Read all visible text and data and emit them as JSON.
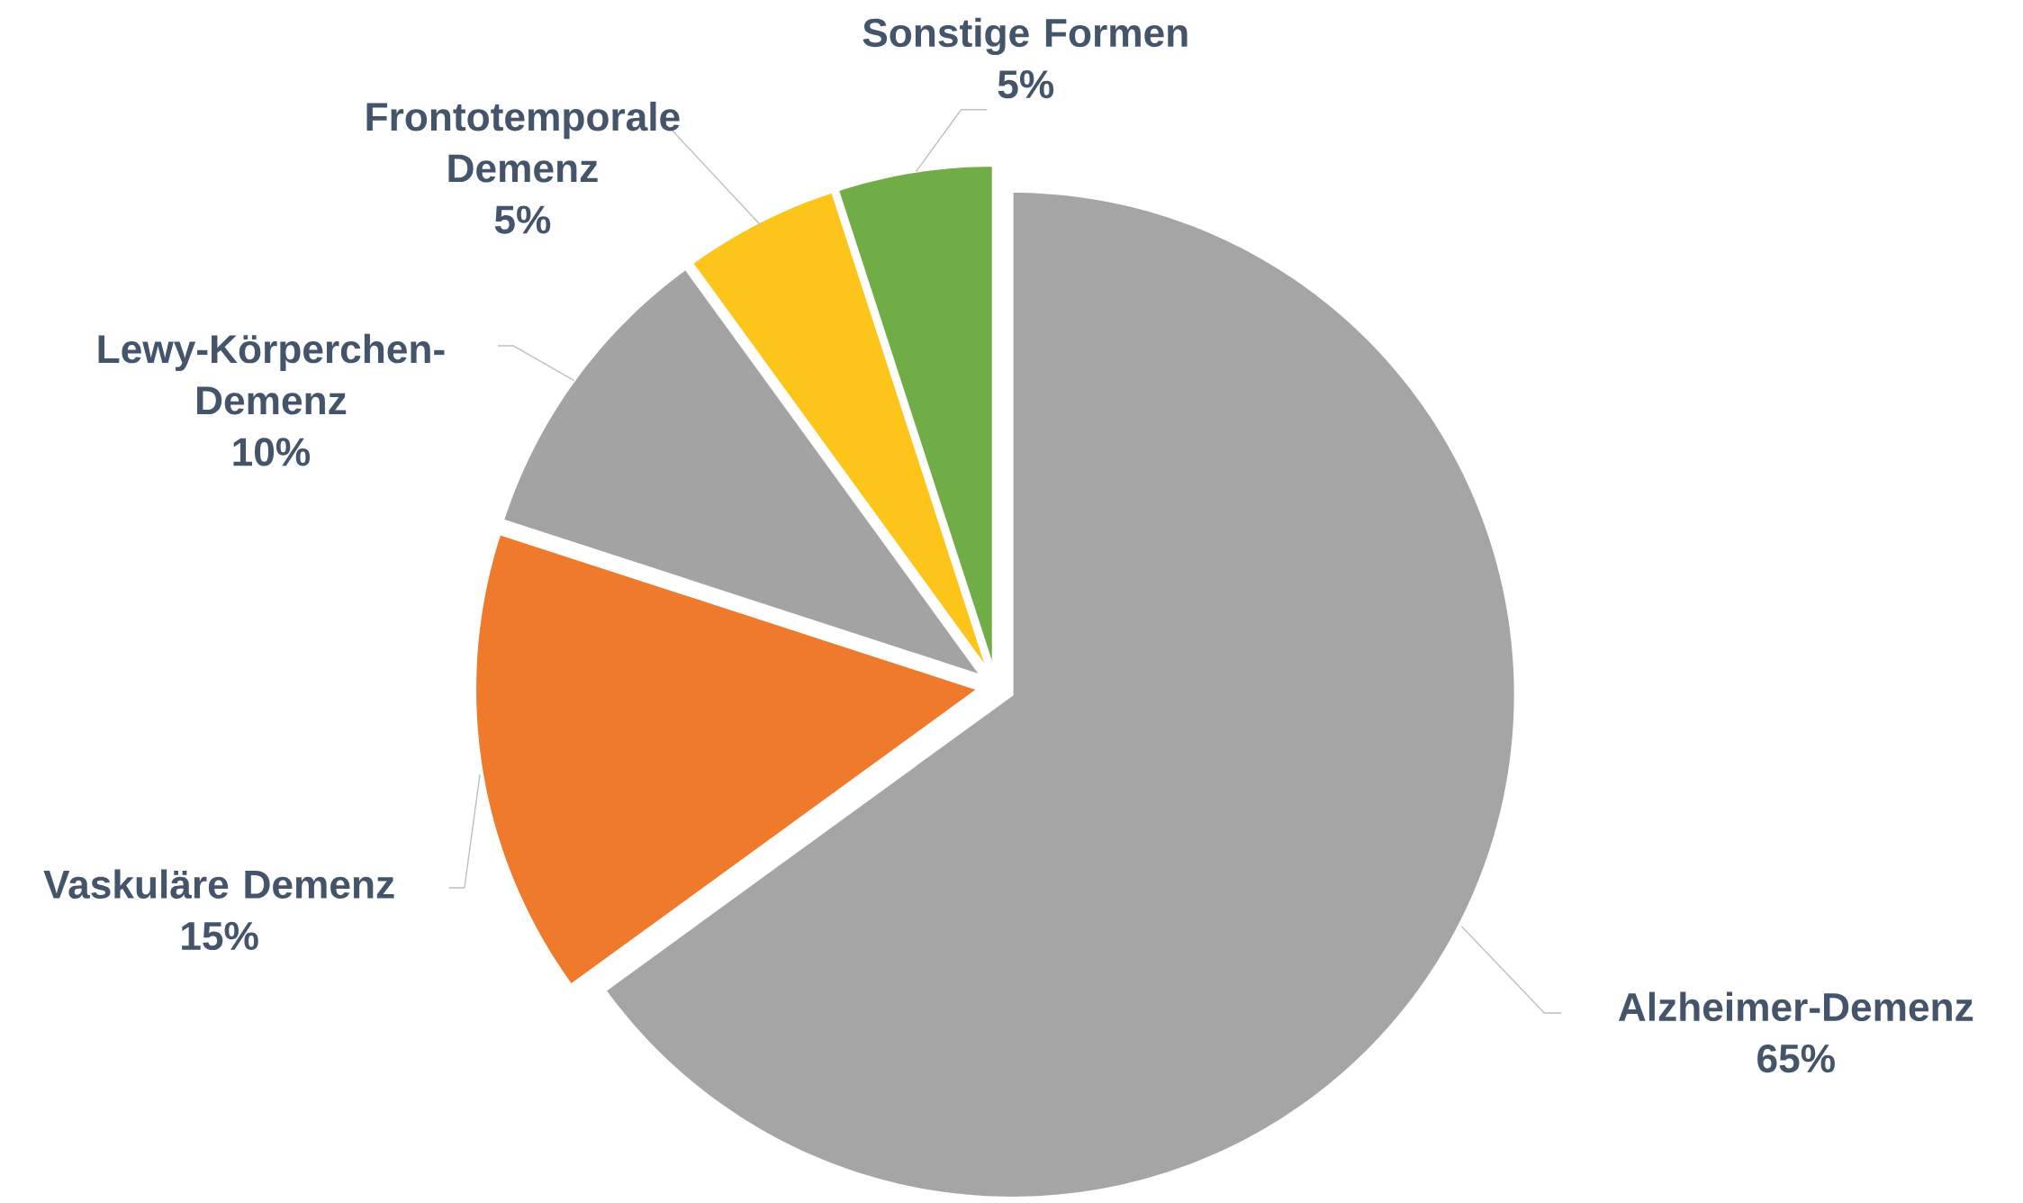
{
  "chart_data": {
    "type": "pie",
    "categories": [
      "Alzheimer-Demenz",
      "Vaskuläre Demenz",
      "Lewy-Körperchen-Demenz",
      "Frontotemporale Demenz",
      "Sonstige Formen"
    ],
    "values": [
      65,
      15,
      10,
      5,
      5
    ],
    "value_labels": [
      "65%",
      "15%",
      "10%",
      "5%",
      "5%"
    ],
    "colors": [
      "#a5a5a5",
      "#ef7a2c",
      "#a3a3a3",
      "#fdc419",
      "#70ad47"
    ]
  }
}
